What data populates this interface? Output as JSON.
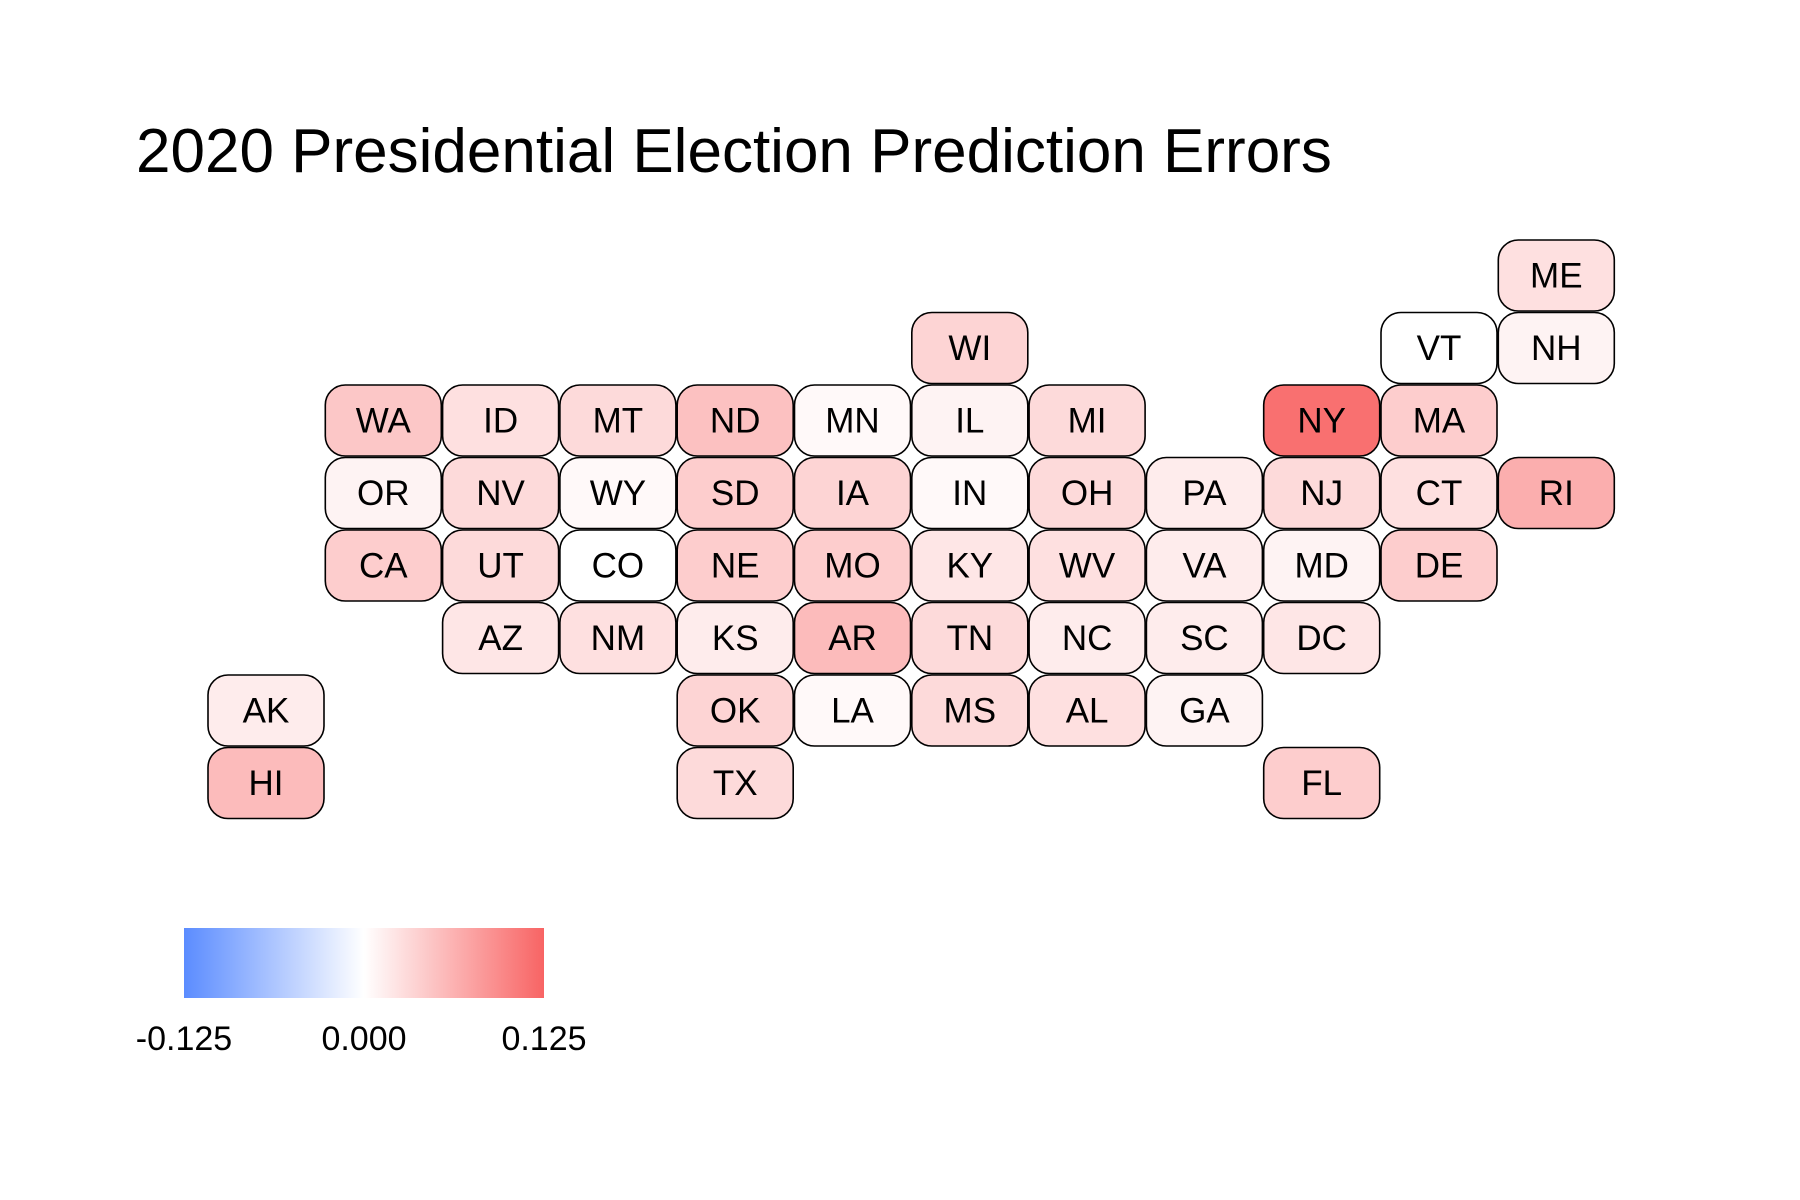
{
  "chart_data": {
    "type": "heatmap",
    "title": "2020 Presidential Election Prediction Errors",
    "layout": "tile grid map",
    "grid": false,
    "color_scale": {
      "colors": [
        "#5b8cff",
        "#ffffff",
        "#f86464"
      ],
      "min": -0.125,
      "mid": 0.0,
      "max": 0.125,
      "ticks": [
        -0.125,
        0.0,
        0.125
      ],
      "tick_labels": [
        "-0.125",
        "0.000",
        "0.125"
      ],
      "legend_position": "bottom-left"
    },
    "tiles": [
      {
        "state": "ME",
        "row": 0,
        "col": 11,
        "value": 0.025
      },
      {
        "state": "WI",
        "row": 1,
        "col": 6,
        "value": 0.035
      },
      {
        "state": "VT",
        "row": 1,
        "col": 10,
        "value": 0.0
      },
      {
        "state": "NH",
        "row": 1,
        "col": 11,
        "value": 0.01
      },
      {
        "state": "WA",
        "row": 2,
        "col": 1,
        "value": 0.045
      },
      {
        "state": "ID",
        "row": 2,
        "col": 2,
        "value": 0.025
      },
      {
        "state": "MT",
        "row": 2,
        "col": 3,
        "value": 0.03
      },
      {
        "state": "ND",
        "row": 2,
        "col": 4,
        "value": 0.05
      },
      {
        "state": "MN",
        "row": 2,
        "col": 5,
        "value": 0.005
      },
      {
        "state": "IL",
        "row": 2,
        "col": 6,
        "value": 0.01
      },
      {
        "state": "MI",
        "row": 2,
        "col": 7,
        "value": 0.03
      },
      {
        "state": "NY",
        "row": 2,
        "col": 9,
        "value": 0.115
      },
      {
        "state": "MA",
        "row": 2,
        "col": 10,
        "value": 0.04
      },
      {
        "state": "OR",
        "row": 3,
        "col": 1,
        "value": 0.01
      },
      {
        "state": "NV",
        "row": 3,
        "col": 2,
        "value": 0.03
      },
      {
        "state": "WY",
        "row": 3,
        "col": 3,
        "value": 0.005
      },
      {
        "state": "SD",
        "row": 3,
        "col": 4,
        "value": 0.04
      },
      {
        "state": "IA",
        "row": 3,
        "col": 5,
        "value": 0.035
      },
      {
        "state": "IN",
        "row": 3,
        "col": 6,
        "value": 0.005
      },
      {
        "state": "OH",
        "row": 3,
        "col": 7,
        "value": 0.03
      },
      {
        "state": "PA",
        "row": 3,
        "col": 8,
        "value": 0.015
      },
      {
        "state": "NJ",
        "row": 3,
        "col": 9,
        "value": 0.03
      },
      {
        "state": "CT",
        "row": 3,
        "col": 10,
        "value": 0.025
      },
      {
        "state": "RI",
        "row": 3,
        "col": 11,
        "value": 0.065
      },
      {
        "state": "CA",
        "row": 4,
        "col": 1,
        "value": 0.04
      },
      {
        "state": "UT",
        "row": 4,
        "col": 2,
        "value": 0.03
      },
      {
        "state": "CO",
        "row": 4,
        "col": 3,
        "value": 0.0
      },
      {
        "state": "NE",
        "row": 4,
        "col": 4,
        "value": 0.04
      },
      {
        "state": "MO",
        "row": 4,
        "col": 5,
        "value": 0.04
      },
      {
        "state": "KY",
        "row": 4,
        "col": 6,
        "value": 0.02
      },
      {
        "state": "WV",
        "row": 4,
        "col": 7,
        "value": 0.025
      },
      {
        "state": "VA",
        "row": 4,
        "col": 8,
        "value": 0.015
      },
      {
        "state": "MD",
        "row": 4,
        "col": 9,
        "value": 0.01
      },
      {
        "state": "DE",
        "row": 4,
        "col": 10,
        "value": 0.04
      },
      {
        "state": "AZ",
        "row": 5,
        "col": 2,
        "value": 0.02
      },
      {
        "state": "NM",
        "row": 5,
        "col": 3,
        "value": 0.025
      },
      {
        "state": "KS",
        "row": 5,
        "col": 4,
        "value": 0.015
      },
      {
        "state": "AR",
        "row": 5,
        "col": 5,
        "value": 0.055
      },
      {
        "state": "TN",
        "row": 5,
        "col": 6,
        "value": 0.03
      },
      {
        "state": "NC",
        "row": 5,
        "col": 7,
        "value": 0.015
      },
      {
        "state": "SC",
        "row": 5,
        "col": 8,
        "value": 0.015
      },
      {
        "state": "DC",
        "row": 5,
        "col": 9,
        "value": 0.02
      },
      {
        "state": "AK",
        "row": 6,
        "col": 0,
        "value": 0.015
      },
      {
        "state": "OK",
        "row": 6,
        "col": 4,
        "value": 0.035
      },
      {
        "state": "LA",
        "row": 6,
        "col": 5,
        "value": 0.005
      },
      {
        "state": "MS",
        "row": 6,
        "col": 6,
        "value": 0.03
      },
      {
        "state": "AL",
        "row": 6,
        "col": 7,
        "value": 0.025
      },
      {
        "state": "GA",
        "row": 6,
        "col": 8,
        "value": 0.01
      },
      {
        "state": "HI",
        "row": 7,
        "col": 0,
        "value": 0.055
      },
      {
        "state": "TX",
        "row": 7,
        "col": 4,
        "value": 0.03
      },
      {
        "state": "FL",
        "row": 7,
        "col": 9,
        "value": 0.04
      }
    ]
  }
}
